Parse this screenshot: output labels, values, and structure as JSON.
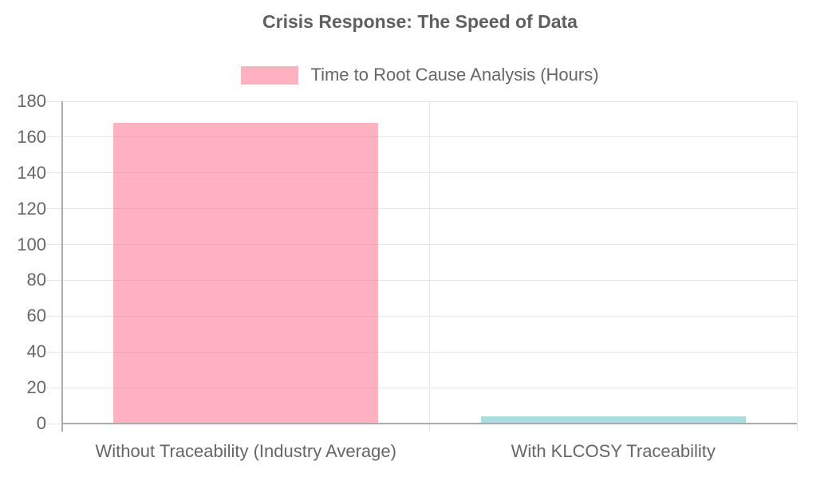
{
  "chart_data": {
    "type": "bar",
    "title": "Crisis Response: The Speed of Data",
    "categories": [
      "Without Traceability (Industry Average)",
      "With KLCOSY Traceability"
    ],
    "series": [
      {
        "name": "Time to Root Cause Analysis (Hours)",
        "values": [
          168,
          4
        ],
        "colors": [
          "rgba(255, 99, 132, 0.5)",
          "rgba(75, 192, 192, 0.5)"
        ]
      }
    ],
    "xlabel": "",
    "ylabel": "",
    "ylim": [
      0,
      180
    ],
    "ytick_step": 20,
    "grid": true,
    "legend_position": "top"
  },
  "colors": {
    "bar_pink_flat": "#FFB1C1",
    "bar_teal_flat": "#A5DFDF",
    "gridline": "#E6E6E6",
    "axis_border": "#ABABAB",
    "text": "#666666",
    "title_text": "#5F5F5F"
  }
}
